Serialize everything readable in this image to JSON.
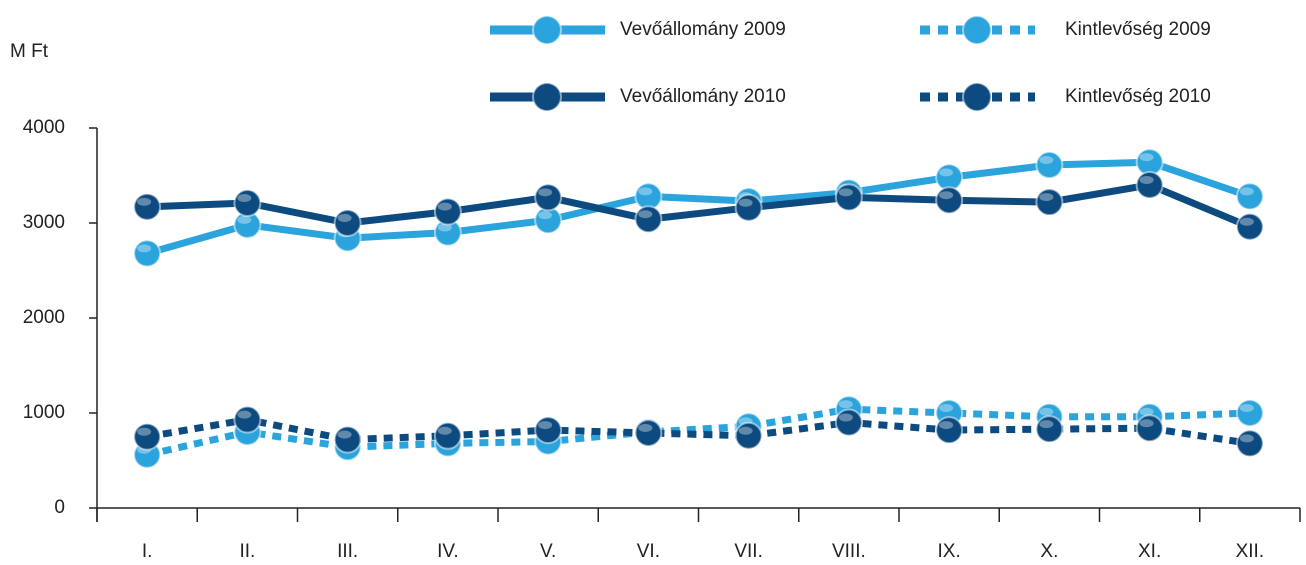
{
  "chart_data": {
    "type": "line",
    "y_label": "M Ft",
    "categories": [
      "I.",
      "II.",
      "III.",
      "IV.",
      "V.",
      "VI.",
      "VII.",
      "VIII.",
      "IX.",
      "X.",
      "XI.",
      "XII."
    ],
    "series": [
      {
        "name": "Vevőállomány 2009",
        "color": "#2ba3dc",
        "dashed": false,
        "values": [
          2680,
          2980,
          2840,
          2900,
          3030,
          3280,
          3230,
          3320,
          3480,
          3610,
          3640,
          3280
        ]
      },
      {
        "name": "Kintlevőség 2009",
        "color": "#2ba3dc",
        "dashed": true,
        "values": [
          560,
          800,
          640,
          680,
          700,
          800,
          860,
          1040,
          1000,
          960,
          960,
          1000
        ]
      },
      {
        "name": "Vevőállomány 2010",
        "color": "#0d4a7f",
        "dashed": false,
        "values": [
          3170,
          3210,
          3000,
          3120,
          3270,
          3040,
          3160,
          3270,
          3240,
          3220,
          3400,
          2960
        ]
      },
      {
        "name": "Kintlevőség 2010",
        "color": "#0d4a7f",
        "dashed": true,
        "values": [
          750,
          930,
          720,
          760,
          820,
          790,
          760,
          900,
          820,
          830,
          840,
          680
        ]
      }
    ],
    "ylim": [
      0,
      4000
    ],
    "yticks": [
      0,
      1000,
      2000,
      3000,
      4000
    ],
    "grid": false
  }
}
